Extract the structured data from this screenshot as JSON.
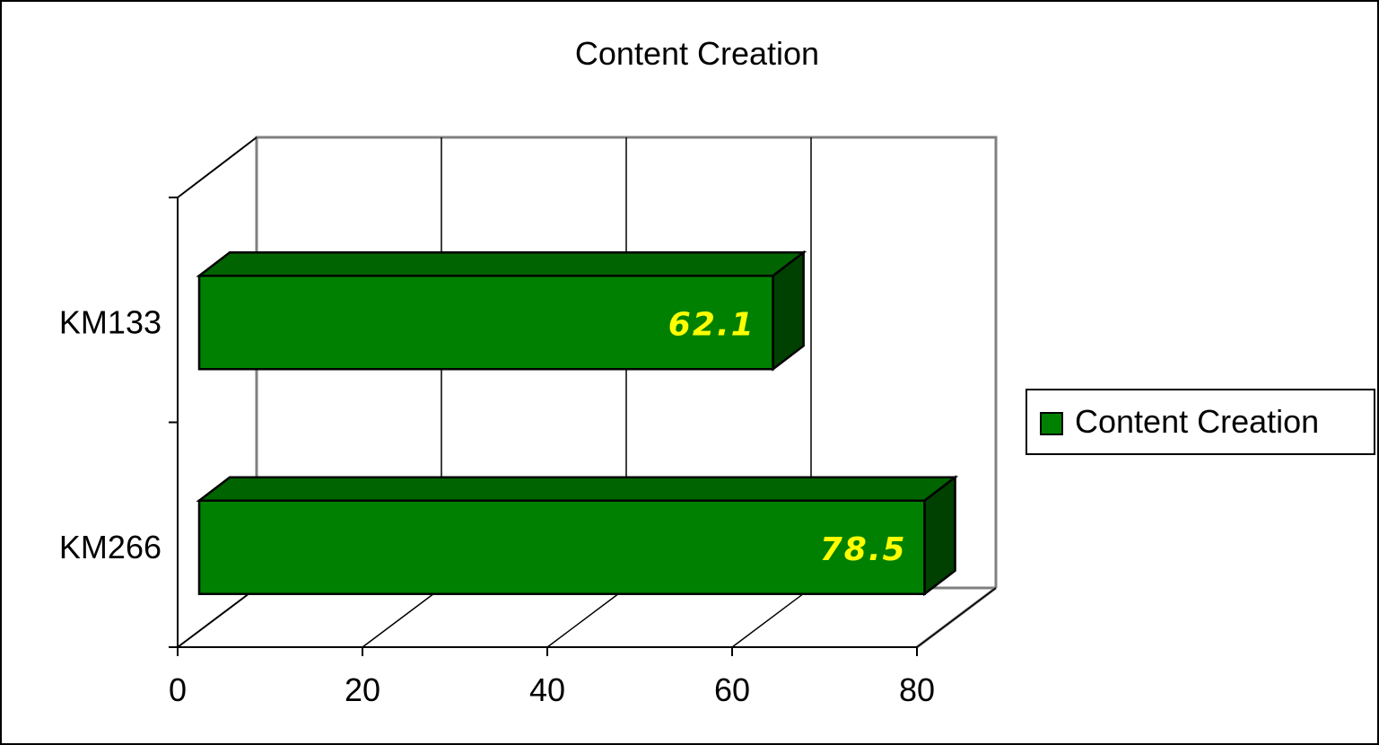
{
  "chart_data": {
    "type": "bar",
    "orientation": "horizontal",
    "three_d": true,
    "title": "Content Creation",
    "categories": [
      "KM133",
      "KM266"
    ],
    "series": [
      {
        "name": "Content Creation",
        "values": [
          62.1,
          78.5
        ]
      }
    ],
    "value_labels": [
      "62.1",
      "78.5"
    ],
    "xlim": [
      0,
      80
    ],
    "x_ticks": [
      "0",
      "20",
      "40",
      "60",
      "80"
    ],
    "grid": true,
    "legend_position": "right",
    "colors": {
      "bar_front": "#008000",
      "bar_top": "#006400",
      "bar_side": "#004000",
      "value_label": "#ffff00",
      "wall_lines": "#808080",
      "axis": "#000000"
    }
  }
}
